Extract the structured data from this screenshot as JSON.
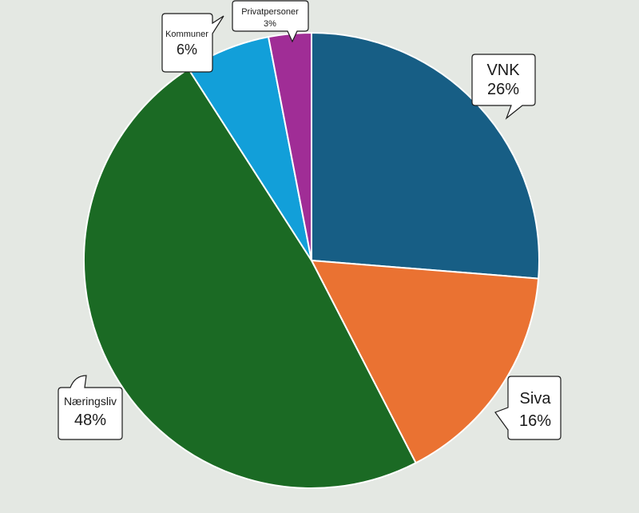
{
  "chart_data": {
    "type": "pie",
    "start_angle_deg": 0,
    "direction": "clockwise",
    "slices": [
      {
        "name": "VNK",
        "percent_label": "26%",
        "value": 26,
        "color": "#175e85"
      },
      {
        "name": "Siva",
        "percent_label": "16%",
        "value": 16,
        "color": "#ea7232"
      },
      {
        "name": "Næringsliv",
        "percent_label": "48%",
        "value": 48,
        "color": "#1b6a24"
      },
      {
        "name": "Kommuner",
        "percent_label": "6%",
        "value": 6,
        "color": "#129fd9"
      },
      {
        "name": "Privatpersoner",
        "percent_label": "3%",
        "value": 3,
        "color": "#a02d96"
      }
    ]
  }
}
